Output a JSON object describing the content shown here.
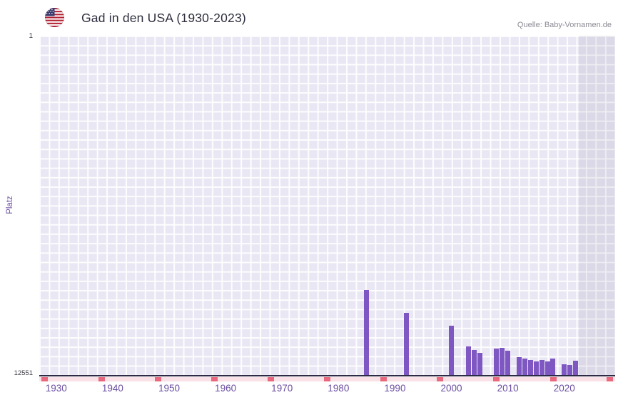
{
  "header": {
    "title": "Gad in den USA (1930-2023)",
    "source": "Quelle: Baby-Vornamen.de",
    "flag_icon": "us-flag-icon"
  },
  "chart_data": {
    "type": "bar",
    "title": "Gad in den USA (1930-2023)",
    "ylabel": "Platz",
    "xlabel": "",
    "y_axis": {
      "min": 1,
      "max": 12551,
      "inverted": true,
      "top_tick_label": "1",
      "bottom_tick_label": "12551"
    },
    "x_axis": {
      "min": 1927,
      "max": 2029,
      "tick_years": [
        1930,
        1940,
        1950,
        1960,
        1970,
        1980,
        1990,
        2000,
        2010,
        2020
      ]
    },
    "grid": true,
    "legend": false,
    "bars": [
      {
        "year": 1985,
        "rank": 9400
      },
      {
        "year": 1992,
        "rank": 10250
      },
      {
        "year": 2000,
        "rank": 10720
      },
      {
        "year": 2003,
        "rank": 11480
      },
      {
        "year": 2004,
        "rank": 11630
      },
      {
        "year": 2005,
        "rank": 11720
      },
      {
        "year": 2008,
        "rank": 11570
      },
      {
        "year": 2009,
        "rank": 11540
      },
      {
        "year": 2010,
        "rank": 11640
      },
      {
        "year": 2012,
        "rank": 11900
      },
      {
        "year": 2013,
        "rank": 11940
      },
      {
        "year": 2014,
        "rank": 11990
      },
      {
        "year": 2015,
        "rank": 12040
      },
      {
        "year": 2016,
        "rank": 11990
      },
      {
        "year": 2017,
        "rank": 12050
      },
      {
        "year": 2018,
        "rank": 11940
      },
      {
        "year": 2020,
        "rank": 12150
      },
      {
        "year": 2021,
        "rank": 12190
      },
      {
        "year": 2022,
        "rank": 12030
      }
    ],
    "shaded_region": {
      "start_year": 2022.5,
      "end_year": 2029
    },
    "red_baseline_marks_years": [
      1928,
      1938,
      1948,
      1958,
      1968,
      1978,
      1988,
      1998,
      2008,
      2018,
      2028
    ],
    "colors": {
      "bar": "#7e57c2",
      "plot_background": "#e9e7f3",
      "grid_line": "#ffffff",
      "axis_line": "#2c2a44",
      "tick_label": "#6b4fa1",
      "baseline_strip": "#f9e2e7",
      "baseline_mark": "#e8697d",
      "source_text": "#8b8b94",
      "title_text": "#2e2f3e"
    }
  }
}
